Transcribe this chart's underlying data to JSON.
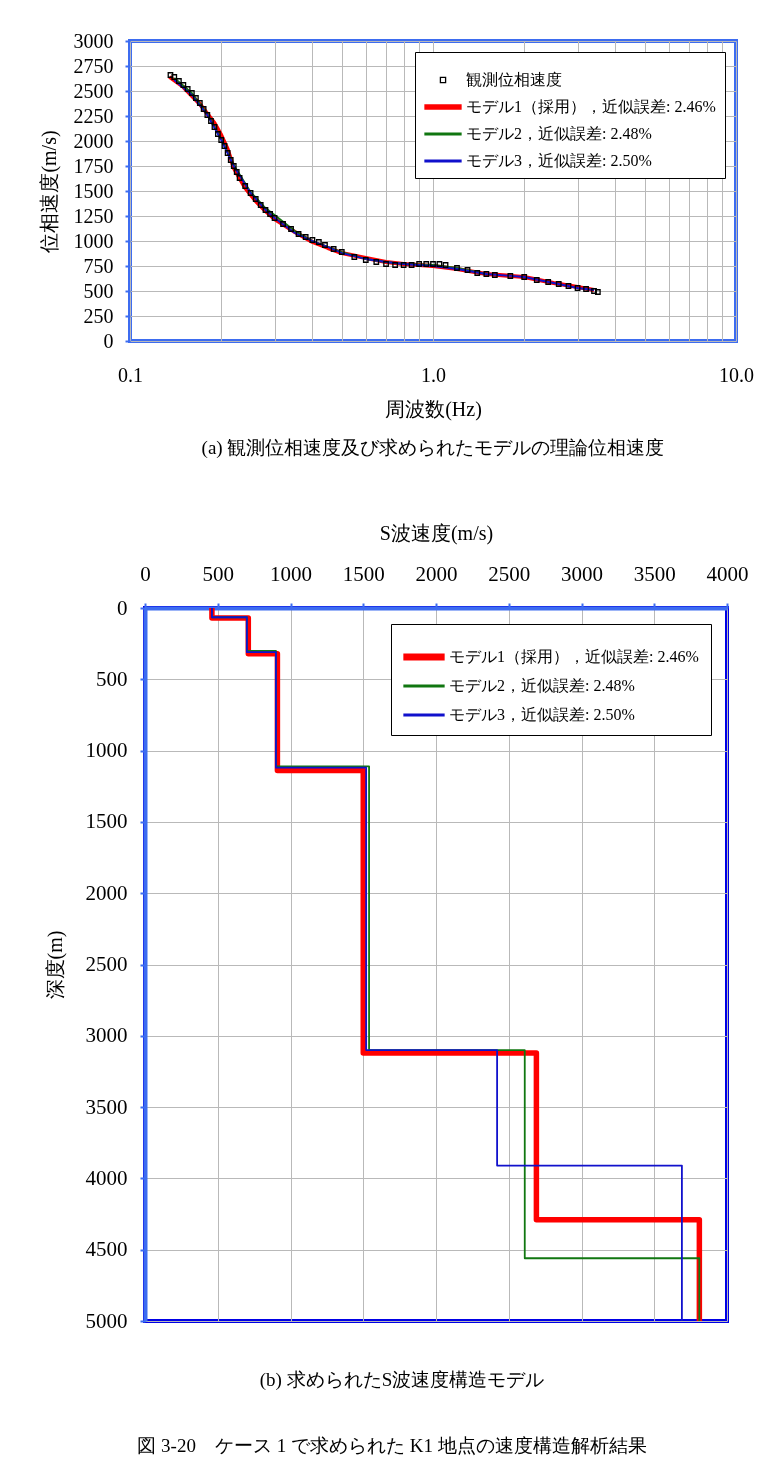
{
  "chart_data": [
    {
      "type": "line",
      "xlabel": "周波数(Hz)",
      "ylabel": "位相速度(m/s)",
      "annotations": [
        "(a)  観測位相速度及び求められたモデルの理論位相速度"
      ],
      "log": "x",
      "xlim": [
        0.1,
        10
      ],
      "xticks": [
        0.1,
        {
          "value": 0.2,
          "label": null
        },
        {
          "value": 0.3,
          "label": null
        },
        {
          "value": 0.4,
          "label": null
        },
        {
          "value": 0.5,
          "label": null
        },
        {
          "value": 0.6,
          "label": null
        },
        {
          "value": 0.7,
          "label": null
        },
        {
          "value": 0.8,
          "label": null
        },
        {
          "value": 0.9,
          "label": null
        },
        {
          "value": 1,
          "label": "1.0"
        },
        {
          "value": 2,
          "label": null
        },
        {
          "value": 3,
          "label": null
        },
        {
          "value": 4,
          "label": null
        },
        {
          "value": 5,
          "label": null
        },
        {
          "value": 6,
          "label": null
        },
        {
          "value": 7,
          "label": null
        },
        {
          "value": 8,
          "label": null
        },
        {
          "value": 9,
          "label": null
        },
        {
          "value": 10,
          "label": "10.0"
        }
      ],
      "ylim": [
        0,
        3000
      ],
      "yticks": [
        0,
        250,
        500,
        750,
        1000,
        1250,
        1500,
        1750,
        2000,
        2250,
        2500,
        2750,
        3000
      ],
      "grid": true,
      "legend": "top right",
      "series": [
        {
          "name": "観測位相速度",
          "type": "scatter",
          "marker": "square",
          "color": "#000000",
          "x": [
            0.136,
            0.14,
            0.145,
            0.15,
            0.155,
            0.16,
            0.165,
            0.17,
            0.175,
            0.18,
            0.185,
            0.19,
            0.195,
            0.2,
            0.205,
            0.21,
            0.215,
            0.22,
            0.225,
            0.23,
            0.24,
            0.25,
            0.26,
            0.27,
            0.28,
            0.29,
            0.3,
            0.32,
            0.34,
            0.36,
            0.38,
            0.4,
            0.42,
            0.44,
            0.47,
            0.5,
            0.55,
            0.6,
            0.65,
            0.7,
            0.75,
            0.8,
            0.85,
            0.9,
            0.95,
            1.0,
            1.05,
            1.1,
            1.2,
            1.3,
            1.4,
            1.5,
            1.6,
            1.8,
            2.0,
            2.2,
            2.4,
            2.6,
            2.8,
            3.0,
            3.2,
            3.4,
            3.5
          ],
          "values": [
            2660,
            2640,
            2600,
            2560,
            2520,
            2480,
            2430,
            2380,
            2320,
            2260,
            2200,
            2140,
            2070,
            2010,
            1950,
            1880,
            1810,
            1750,
            1690,
            1630,
            1550,
            1480,
            1420,
            1360,
            1310,
            1270,
            1230,
            1170,
            1120,
            1070,
            1040,
            1010,
            990,
            960,
            920,
            890,
            840,
            810,
            790,
            770,
            760,
            760,
            760,
            770,
            770,
            770,
            770,
            760,
            730,
            710,
            680,
            670,
            660,
            650,
            640,
            610,
            590,
            570,
            550,
            530,
            520,
            500,
            490
          ]
        },
        {
          "name": "モデル1（採用），近似誤差: 2.46%",
          "color": "#ff0000",
          "x": [
            0.135,
            0.15,
            0.17,
            0.19,
            0.2,
            0.21,
            0.22,
            0.24,
            0.26,
            0.28,
            0.3,
            0.35,
            0.4,
            0.45,
            0.5,
            0.6,
            0.7,
            0.8,
            0.9,
            1.0,
            1.2,
            1.5,
            2.0,
            2.5,
            3.0,
            3.4
          ],
          "values": [
            2640,
            2540,
            2370,
            2180,
            2060,
            1920,
            1730,
            1530,
            1400,
            1300,
            1220,
            1090,
            990,
            930,
            880,
            830,
            790,
            770,
            760,
            750,
            720,
            670,
            640,
            580,
            540,
            510
          ]
        },
        {
          "name": "モデル2，近似誤差: 2.48%",
          "color": "#117711",
          "x": [
            0.14,
            0.16,
            0.18,
            0.2,
            0.22,
            0.25,
            0.28,
            0.3,
            0.35,
            0.4,
            0.5,
            0.6,
            0.7,
            0.8,
            1.0,
            1.2,
            1.5
          ],
          "values": [
            2630,
            2480,
            2270,
            2020,
            1760,
            1490,
            1330,
            1260,
            1100,
            1000,
            890,
            820,
            790,
            770,
            760,
            730,
            670
          ]
        },
        {
          "name": "モデル3，近似誤差: 2.50%",
          "color": "#1111cc",
          "x": [
            0.14,
            0.16,
            0.18,
            0.2,
            0.22,
            0.25,
            0.28,
            0.3,
            0.35,
            0.4,
            0.45,
            0.5,
            0.6,
            0.7,
            0.8,
            1.0,
            1.2,
            1.5,
            2.0,
            2.5,
            3.0,
            3.4
          ],
          "values": [
            2610,
            2460,
            2260,
            2010,
            1750,
            1480,
            1310,
            1230,
            1080,
            1000,
            940,
            880,
            820,
            790,
            770,
            750,
            720,
            670,
            640,
            580,
            530,
            510
          ]
        }
      ]
    },
    {
      "type": "line",
      "xlabel": "S波速度(m/s)",
      "ylabel": "深度(m)",
      "annotations": [
        "(b)  求められたS波速度構造モデル",
        "図 3-20　ケース 1 で求められた K1 地点の速度構造解析結果"
      ],
      "xlim": [
        0,
        4000
      ],
      "xticks": [
        0,
        500,
        1000,
        1500,
        2000,
        2500,
        3000,
        3500,
        4000
      ],
      "ylim": [
        5000,
        0
      ],
      "yticks": [
        0,
        500,
        1000,
        1500,
        2000,
        2500,
        3000,
        3500,
        4000,
        4500,
        5000
      ],
      "grid": true,
      "legend": "top right",
      "series": [
        {
          "name": "モデル1（採用），近似誤差: 2.46%",
          "color": "#ff0000",
          "x": [
            460,
            460,
            710,
            710,
            910,
            910,
            1500,
            1500,
            2690,
            2690,
            3810,
            3810
          ],
          "values": [
            0,
            70,
            70,
            320,
            320,
            1140,
            1140,
            3120,
            3120,
            4290,
            4290,
            5000
          ]
        },
        {
          "name": "モデル2，近似誤差: 2.48%",
          "color": "#117711",
          "x": [
            460,
            460,
            700,
            700,
            900,
            900,
            1540,
            1540,
            2610,
            2610,
            3810,
            3810
          ],
          "values": [
            0,
            65,
            65,
            300,
            300,
            1110,
            1110,
            3100,
            3100,
            4560,
            4560,
            5000
          ]
        },
        {
          "name": "モデル3，近似誤差: 2.50%",
          "color": "#1111cc",
          "x": [
            460,
            460,
            700,
            700,
            900,
            900,
            1520,
            1520,
            2420,
            2420,
            3690,
            3690
          ],
          "values": [
            0,
            65,
            65,
            310,
            310,
            1120,
            1120,
            3100,
            3100,
            3910,
            3910,
            5000
          ]
        }
      ]
    }
  ]
}
